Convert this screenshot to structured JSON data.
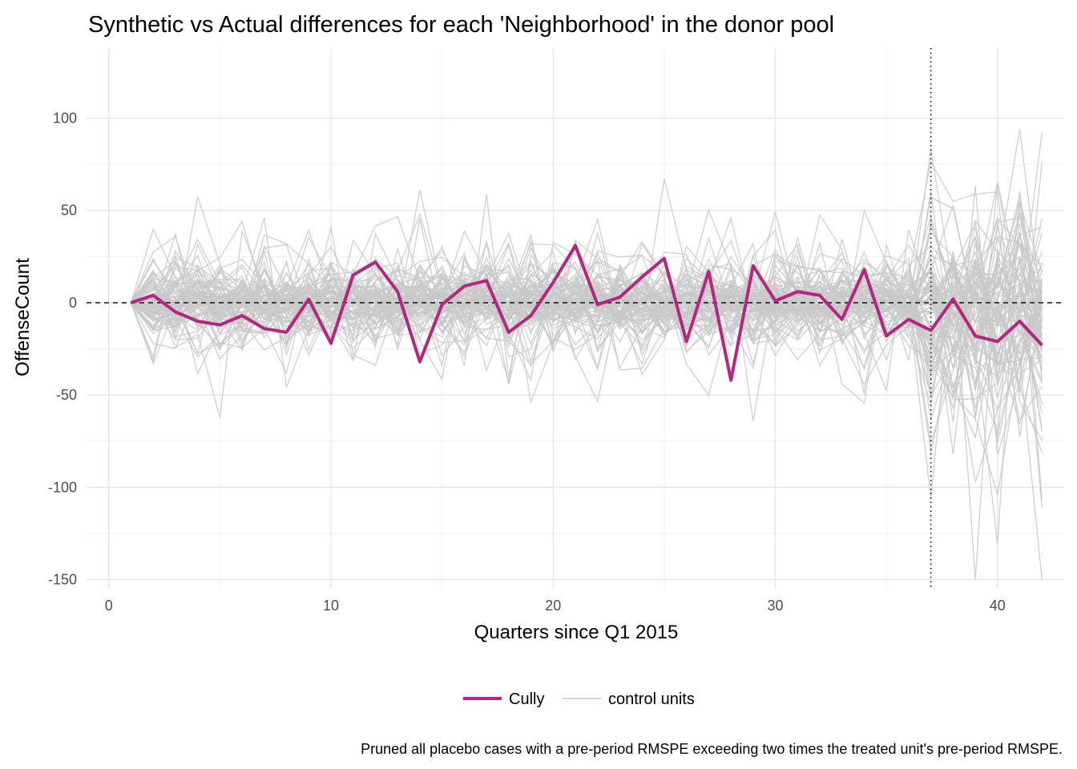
{
  "chart_data": {
    "type": "line",
    "title": "Synthetic vs Actual differences for each 'Neighborhood' in the donor pool",
    "xlabel": "Quarters since Q1 2015",
    "ylabel": "OffenseCount",
    "xlim": [
      -1,
      43
    ],
    "ylim": [
      -155,
      138
    ],
    "x_ticks": [
      0,
      10,
      20,
      30,
      40
    ],
    "x_tick_labels": [
      "0",
      "10",
      "20",
      "30",
      "40"
    ],
    "y_ticks": [
      100,
      50,
      0,
      -50,
      -100,
      -150
    ],
    "y_tick_labels": [
      "100",
      "50",
      "0",
      "-50",
      "-100",
      "-150"
    ],
    "grid": true,
    "reference_lines": {
      "horizontal_dashed_y": 0,
      "vertical_dotted_x": 37
    },
    "treated": {
      "name": "Cully",
      "color": "#b5267f",
      "x": [
        1,
        2,
        3,
        4,
        5,
        6,
        7,
        8,
        9,
        10,
        11,
        12,
        13,
        14,
        15,
        16,
        17,
        18,
        19,
        20,
        21,
        22,
        23,
        24,
        25,
        26,
        27,
        28,
        29,
        30,
        31,
        32,
        33,
        34,
        35,
        36,
        37,
        38,
        39,
        40,
        41,
        42
      ],
      "values": [
        0,
        4,
        -5,
        -10,
        -12,
        -7,
        -14,
        -16,
        2,
        -22,
        15,
        22,
        6,
        -32,
        -1,
        9,
        12,
        -16,
        -7,
        11,
        31,
        -1,
        3,
        14,
        24,
        -21,
        17,
        -42,
        20,
        1,
        6,
        4,
        -9,
        18,
        -18,
        -9,
        -15,
        2,
        -18,
        -21,
        -10,
        -23
      ]
    },
    "controls": {
      "name": "control units",
      "color": "#c8c8c8",
      "count": 88
    },
    "legend": {
      "position": "bottom",
      "items": [
        {
          "label": "Cully",
          "color": "#b5267f"
        },
        {
          "label": "control units",
          "color": "#c8c8c8"
        }
      ]
    },
    "caption": "Pruned all placebo cases with a pre-period RMSPE exceeding two times the treated unit's pre-period RMSPE."
  }
}
